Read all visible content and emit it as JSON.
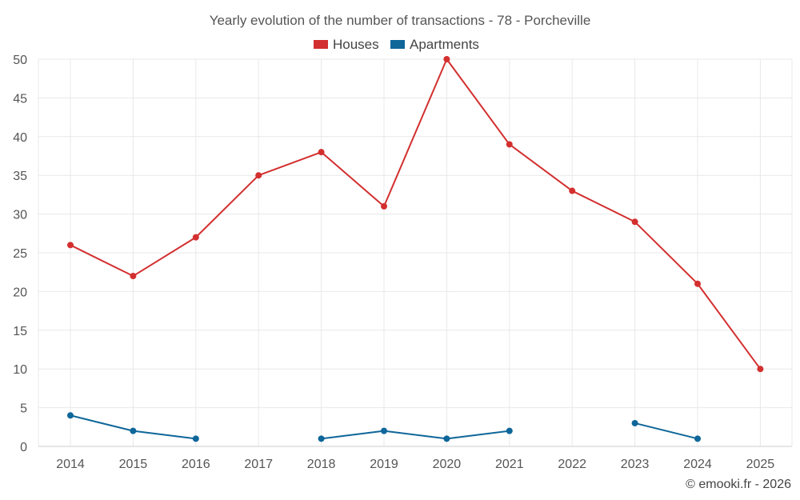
{
  "chart_data": {
    "type": "line",
    "title": "Yearly evolution of the number of transactions - 78 - Porcheville",
    "categories": [
      "2014",
      "2015",
      "2016",
      "2017",
      "2018",
      "2019",
      "2020",
      "2021",
      "2022",
      "2023",
      "2024",
      "2025"
    ],
    "series": [
      {
        "name": "Houses",
        "color": "#d32f2f",
        "values": [
          26,
          22,
          27,
          35,
          38,
          31,
          50,
          39,
          33,
          29,
          21,
          10
        ]
      },
      {
        "name": "Apartments",
        "color": "#0e6699",
        "values": [
          4,
          2,
          1,
          null,
          1,
          2,
          1,
          2,
          null,
          3,
          1,
          null
        ]
      }
    ],
    "ylim": [
      0,
      50
    ],
    "yticks": [
      0,
      5,
      10,
      15,
      20,
      25,
      30,
      35,
      40,
      45,
      50
    ],
    "grid": true,
    "legend": "top-center",
    "xlabel": "",
    "ylabel": "",
    "credit": "© emooki.fr - 2026"
  }
}
